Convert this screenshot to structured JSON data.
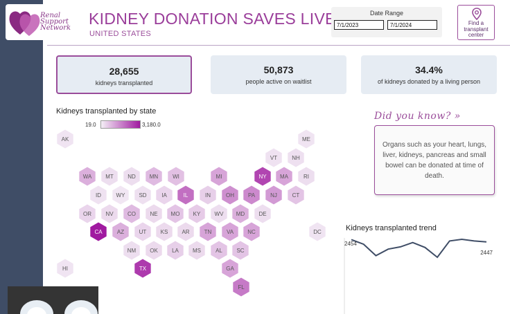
{
  "header": {
    "title": "KIDNEY DONATION SAVES LIVES",
    "subtitle": "UNITED STATES",
    "logo_text": "Renal Support Network",
    "accent": "#9a4c9a"
  },
  "date_range": {
    "label": "Date Range",
    "start": "7/1/2023",
    "end": "7/1/2024"
  },
  "find_center": {
    "label_line1": "Find a",
    "label_line2": "transplant",
    "label_line3": "center",
    "icon": "map-pin-icon"
  },
  "kpis": [
    {
      "value": "28,655",
      "label": "kidneys transplanted"
    },
    {
      "value": "50,873",
      "label": "people active on waitlist"
    },
    {
      "value": "34.4%",
      "label": "of kidneys donated by a living person"
    }
  ],
  "map": {
    "title": "Kidneys transplanted by state",
    "legend_min": "19.0",
    "legend_max": "3,180.0",
    "states": [
      {
        "code": "AK",
        "level": 0.05
      },
      {
        "code": "ME",
        "level": 0.05
      },
      {
        "code": "VT",
        "level": 0.06
      },
      {
        "code": "NH",
        "level": 0.07
      },
      {
        "code": "WA",
        "level": 0.3
      },
      {
        "code": "MT",
        "level": 0.08
      },
      {
        "code": "ND",
        "level": 0.08
      },
      {
        "code": "MN",
        "level": 0.25
      },
      {
        "code": "WI",
        "level": 0.22
      },
      {
        "code": "MI",
        "level": 0.35
      },
      {
        "code": "NY",
        "level": 0.8
      },
      {
        "code": "MA",
        "level": 0.35
      },
      {
        "code": "RI",
        "level": 0.08
      },
      {
        "code": "ID",
        "level": 0.06
      },
      {
        "code": "WY",
        "level": 0.04
      },
      {
        "code": "SD",
        "level": 0.07
      },
      {
        "code": "IA",
        "level": 0.12
      },
      {
        "code": "IL",
        "level": 0.6
      },
      {
        "code": "IN",
        "level": 0.15
      },
      {
        "code": "OH",
        "level": 0.45
      },
      {
        "code": "PA",
        "level": 0.48
      },
      {
        "code": "NJ",
        "level": 0.4
      },
      {
        "code": "CT",
        "level": 0.2
      },
      {
        "code": "OR",
        "level": 0.12
      },
      {
        "code": "NV",
        "level": 0.1
      },
      {
        "code": "CO",
        "level": 0.25
      },
      {
        "code": "NE",
        "level": 0.1
      },
      {
        "code": "MO",
        "level": 0.2
      },
      {
        "code": "KY",
        "level": 0.17
      },
      {
        "code": "WV",
        "level": 0.08
      },
      {
        "code": "MD",
        "level": 0.3
      },
      {
        "code": "DE",
        "level": 0.08
      },
      {
        "code": "CA",
        "level": 1.0
      },
      {
        "code": "AZ",
        "level": 0.3
      },
      {
        "code": "UT",
        "level": 0.12
      },
      {
        "code": "KS",
        "level": 0.1
      },
      {
        "code": "AR",
        "level": 0.1
      },
      {
        "code": "TN",
        "level": 0.35
      },
      {
        "code": "VA",
        "level": 0.35
      },
      {
        "code": "NC",
        "level": 0.35
      },
      {
        "code": "DC",
        "level": 0.05
      },
      {
        "code": "NM",
        "level": 0.08
      },
      {
        "code": "OK",
        "level": 0.1
      },
      {
        "code": "LA",
        "level": 0.15
      },
      {
        "code": "MS",
        "level": 0.1
      },
      {
        "code": "AL",
        "level": 0.2
      },
      {
        "code": "SC",
        "level": 0.2
      },
      {
        "code": "HI",
        "level": 0.05
      },
      {
        "code": "TX",
        "level": 0.85
      },
      {
        "code": "GA",
        "level": 0.35
      },
      {
        "code": "FL",
        "level": 0.55
      }
    ]
  },
  "did_you_know": {
    "title": "Did you know? »",
    "text": "Organs such as your heart, lungs, liver, kidneys, pancreas and small bowel can be donated at time of death."
  },
  "trend": {
    "title": "Kidneys transplanted trend",
    "start_label": "2454",
    "end_label": "2447",
    "values": [
      2454,
      2440,
      2405,
      2425,
      2432,
      2445,
      2430,
      2400,
      2450,
      2455,
      2450,
      2447
    ]
  }
}
